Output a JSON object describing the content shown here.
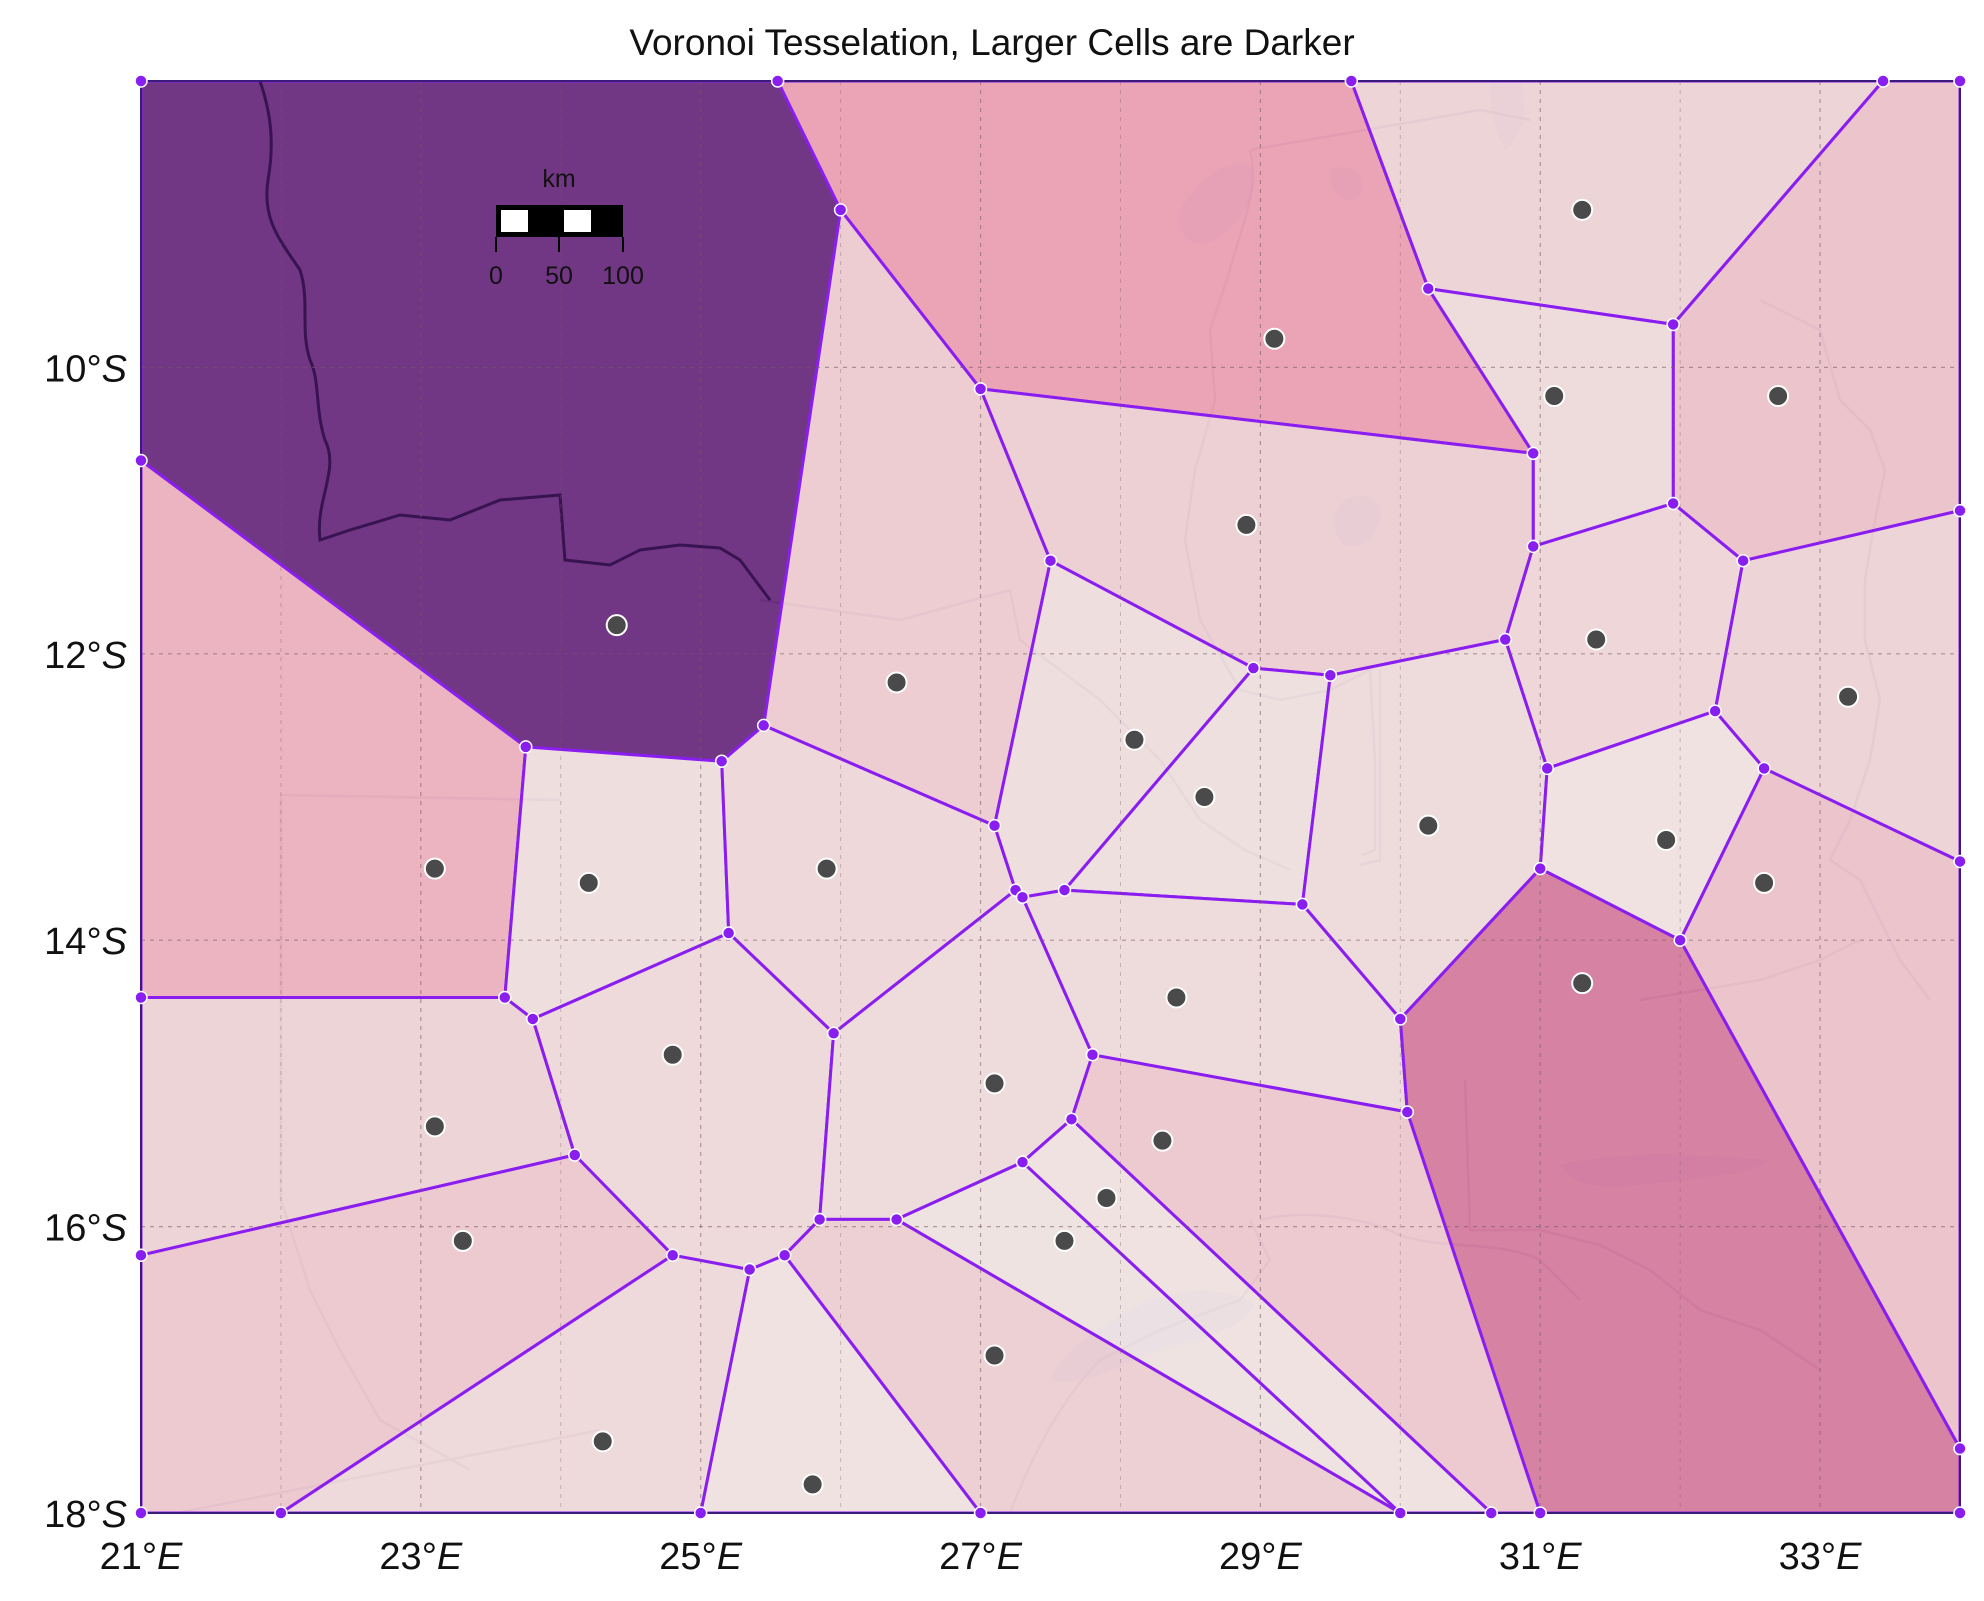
{
  "title": "Voronoi Tesselation, Larger Cells are Darker",
  "colors": {
    "edge": "#8a1ef0",
    "site_fill": "#4a4a4a",
    "site_stroke": "#ffffff",
    "largest_cell": "#5a1d70",
    "second_cell": "#d8559a",
    "land": "#efe2df",
    "water": "#c9c8e6"
  },
  "map": {
    "projection": "lat-lon grid",
    "lon_range": [
      21,
      34
    ],
    "lat_range": [
      -18,
      -8
    ],
    "grid_lines": true,
    "lon_ticks": [
      {
        "value": 21,
        "deg": "21°",
        "hem": "E"
      },
      {
        "value": 23,
        "deg": "23°",
        "hem": "E"
      },
      {
        "value": 25,
        "deg": "25°",
        "hem": "E"
      },
      {
        "value": 27,
        "deg": "27°",
        "hem": "E"
      },
      {
        "value": 29,
        "deg": "29°",
        "hem": "E"
      },
      {
        "value": 31,
        "deg": "31°",
        "hem": "E"
      },
      {
        "value": 33,
        "deg": "33°",
        "hem": "E"
      }
    ],
    "lat_ticks": [
      {
        "value": -10,
        "deg": "10°",
        "hem": "S"
      },
      {
        "value": -12,
        "deg": "12°",
        "hem": "S"
      },
      {
        "value": -14,
        "deg": "14°",
        "hem": "S"
      },
      {
        "value": -16,
        "deg": "16°",
        "hem": "S"
      },
      {
        "value": -18,
        "deg": "18°",
        "hem": "S"
      }
    ]
  },
  "scale_bar": {
    "unit": "km",
    "labels": [
      "0",
      "50",
      "100"
    ],
    "location": "top-left"
  },
  "cells": [
    {
      "shade": 1.0,
      "site": [
        24.4,
        -11.8
      ],
      "poly": [
        [
          21,
          -8
        ],
        [
          25.55,
          -8
        ],
        [
          26.0,
          -8.9
        ],
        [
          25.45,
          -12.5
        ],
        [
          25.15,
          -12.75
        ],
        [
          23.75,
          -12.65
        ],
        [
          21,
          -10.65
        ]
      ]
    },
    {
      "shade": 0.42,
      "site": [
        29.1,
        -9.8
      ],
      "poly": [
        [
          25.55,
          -8
        ],
        [
          29.65,
          -8
        ],
        [
          30.2,
          -9.45
        ],
        [
          30.95,
          -10.6
        ],
        [
          27.0,
          -10.15
        ],
        [
          26.0,
          -8.9
        ]
      ]
    },
    {
      "shade": 0.12,
      "site": [
        31.3,
        -8.9
      ],
      "poly": [
        [
          29.65,
          -8
        ],
        [
          33.45,
          -8
        ],
        [
          31.95,
          -9.7
        ],
        [
          30.2,
          -9.45
        ]
      ]
    },
    {
      "shade": 0.22,
      "site": [
        32.7,
        -10.2
      ],
      "poly": [
        [
          33.45,
          -8
        ],
        [
          34,
          -8
        ],
        [
          34,
          -11.0
        ],
        [
          32.45,
          -11.35
        ],
        [
          31.95,
          -10.95
        ],
        [
          31.95,
          -9.7
        ]
      ]
    },
    {
      "shade": 0.06,
      "site": [
        31.1,
        -10.2
      ],
      "poly": [
        [
          30.2,
          -9.45
        ],
        [
          31.95,
          -9.7
        ],
        [
          31.95,
          -10.95
        ],
        [
          30.95,
          -11.25
        ],
        [
          30.95,
          -10.6
        ]
      ]
    },
    {
      "shade": 0.16,
      "site": [
        26.4,
        -12.2
      ],
      "poly": [
        [
          26.0,
          -8.9
        ],
        [
          27.0,
          -10.15
        ],
        [
          27.5,
          -11.35
        ],
        [
          27.1,
          -13.2
        ],
        [
          25.45,
          -12.5
        ]
      ]
    },
    {
      "shade": 0.14,
      "site": [
        28.9,
        -11.1
      ],
      "poly": [
        [
          27.0,
          -10.15
        ],
        [
          30.95,
          -10.6
        ],
        [
          30.95,
          -11.25
        ],
        [
          30.75,
          -11.9
        ],
        [
          29.5,
          -12.15
        ],
        [
          28.95,
          -12.1
        ],
        [
          27.5,
          -11.35
        ]
      ]
    },
    {
      "shade": 0.1,
      "site": [
        31.4,
        -11.9
      ],
      "poly": [
        [
          30.95,
          -11.25
        ],
        [
          31.95,
          -10.95
        ],
        [
          32.45,
          -11.35
        ],
        [
          32.25,
          -12.4
        ],
        [
          31.05,
          -12.8
        ],
        [
          30.75,
          -11.9
        ]
      ]
    },
    {
      "shade": 0.12,
      "site": [
        33.2,
        -12.3
      ],
      "poly": [
        [
          32.45,
          -11.35
        ],
        [
          34,
          -11.0
        ],
        [
          34,
          -13.45
        ],
        [
          32.6,
          -12.8
        ],
        [
          32.25,
          -12.4
        ]
      ]
    },
    {
      "shade": 0.32,
      "site": [
        23.1,
        -13.5
      ],
      "poly": [
        [
          21,
          -10.65
        ],
        [
          23.75,
          -12.65
        ],
        [
          23.6,
          -14.4
        ],
        [
          21,
          -14.4
        ]
      ]
    },
    {
      "shade": 0.05,
      "site": [
        24.2,
        -13.6
      ],
      "poly": [
        [
          23.75,
          -12.65
        ],
        [
          25.15,
          -12.75
        ],
        [
          25.2,
          -13.95
        ],
        [
          23.8,
          -14.55
        ],
        [
          23.6,
          -14.4
        ]
      ]
    },
    {
      "shade": 0.09,
      "site": [
        25.9,
        -13.5
      ],
      "poly": [
        [
          25.15,
          -12.75
        ],
        [
          25.45,
          -12.5
        ],
        [
          27.1,
          -13.2
        ],
        [
          27.25,
          -13.65
        ],
        [
          25.95,
          -14.65
        ],
        [
          25.2,
          -13.95
        ]
      ]
    },
    {
      "shade": 0.05,
      "site": [
        28.1,
        -12.6
      ],
      "poly": [
        [
          27.5,
          -11.35
        ],
        [
          28.95,
          -12.1
        ],
        [
          27.6,
          -13.65
        ],
        [
          27.3,
          -13.7
        ],
        [
          27.25,
          -13.65
        ],
        [
          27.1,
          -13.2
        ]
      ]
    },
    {
      "shade": 0.04,
      "site": [
        28.6,
        -13.0
      ],
      "poly": [
        [
          28.95,
          -12.1
        ],
        [
          29.5,
          -12.15
        ],
        [
          29.3,
          -13.75
        ],
        [
          27.6,
          -13.65
        ]
      ]
    },
    {
      "shade": 0.06,
      "site": [
        30.2,
        -13.2
      ],
      "poly": [
        [
          29.5,
          -12.15
        ],
        [
          30.75,
          -11.9
        ],
        [
          31.05,
          -12.8
        ],
        [
          31.0,
          -13.5
        ],
        [
          30.0,
          -14.55
        ],
        [
          29.3,
          -13.75
        ]
      ]
    },
    {
      "shade": 0.03,
      "site": [
        31.9,
        -13.3
      ],
      "poly": [
        [
          31.05,
          -12.8
        ],
        [
          32.25,
          -12.4
        ],
        [
          32.6,
          -12.8
        ],
        [
          32.0,
          -14.0
        ],
        [
          31.0,
          -13.5
        ]
      ]
    },
    {
      "shade": 0.22,
      "site": [
        32.6,
        -13.6
      ],
      "poly": [
        [
          32.6,
          -12.8
        ],
        [
          34,
          -13.45
        ],
        [
          34,
          -17.55
        ],
        [
          32.0,
          -14.0
        ]
      ]
    },
    {
      "shade": 0.12,
      "site": [
        23.1,
        -15.3
      ],
      "poly": [
        [
          21,
          -14.4
        ],
        [
          23.6,
          -14.4
        ],
        [
          23.8,
          -14.55
        ],
        [
          24.1,
          -15.5
        ],
        [
          21,
          -16.2
        ]
      ]
    },
    {
      "shade": 0.08,
      "site": [
        24.8,
        -14.8
      ],
      "poly": [
        [
          23.8,
          -14.55
        ],
        [
          25.2,
          -13.95
        ],
        [
          25.95,
          -14.65
        ],
        [
          25.85,
          -15.95
        ],
        [
          25.6,
          -16.2
        ],
        [
          25.35,
          -16.3
        ],
        [
          24.8,
          -16.2
        ],
        [
          24.1,
          -15.5
        ]
      ]
    },
    {
      "shade": 0.06,
      "site": [
        27.1,
        -15.0
      ],
      "poly": [
        [
          25.95,
          -14.65
        ],
        [
          27.25,
          -13.65
        ],
        [
          27.3,
          -13.7
        ],
        [
          27.8,
          -14.8
        ],
        [
          27.65,
          -15.25
        ],
        [
          27.3,
          -15.55
        ],
        [
          26.4,
          -15.95
        ],
        [
          25.85,
          -15.95
        ]
      ]
    },
    {
      "shade": 0.07,
      "site": [
        28.4,
        -14.4
      ],
      "poly": [
        [
          27.3,
          -13.7
        ],
        [
          27.6,
          -13.65
        ],
        [
          29.3,
          -13.75
        ],
        [
          30.0,
          -14.55
        ],
        [
          30.05,
          -15.2
        ],
        [
          27.8,
          -14.8
        ]
      ]
    },
    {
      "shade": 0.62,
      "site": [
        31.3,
        -14.3
      ],
      "poly": [
        [
          31.0,
          -13.5
        ],
        [
          32.0,
          -14.0
        ],
        [
          34,
          -17.55
        ],
        [
          34,
          -18
        ],
        [
          31.0,
          -18
        ],
        [
          30.05,
          -15.2
        ],
        [
          30.0,
          -14.55
        ]
      ]
    },
    {
      "shade": 0.18,
      "site": [
        28.3,
        -15.4
      ],
      "poly": [
        [
          27.8,
          -14.8
        ],
        [
          30.05,
          -15.2
        ],
        [
          31.0,
          -18
        ],
        [
          30.65,
          -18
        ],
        [
          27.65,
          -15.25
        ]
      ]
    },
    {
      "shade": 0.03,
      "site": [
        27.9,
        -15.8
      ],
      "poly": [
        [
          27.65,
          -15.25
        ],
        [
          30.65,
          -18
        ],
        [
          30.0,
          -18
        ],
        [
          27.3,
          -15.55
        ]
      ]
    },
    {
      "shade": 0.02,
      "site": [
        27.6,
        -16.1
      ],
      "poly": [
        [
          27.3,
          -15.55
        ],
        [
          30.0,
          -18
        ],
        [
          26.4,
          -15.95
        ]
      ]
    },
    {
      "shade": 0.18,
      "site": [
        23.3,
        -16.1
      ],
      "poly": [
        [
          21,
          -16.2
        ],
        [
          24.1,
          -15.5
        ],
        [
          24.8,
          -16.2
        ],
        [
          22.0,
          -18
        ],
        [
          21,
          -18
        ]
      ]
    },
    {
      "shade": 0.08,
      "site": [
        24.3,
        -17.5
      ],
      "poly": [
        [
          22.0,
          -18
        ],
        [
          24.8,
          -16.2
        ],
        [
          25.35,
          -16.3
        ],
        [
          25.0,
          -18
        ]
      ]
    },
    {
      "shade": 0.03,
      "site": [
        25.8,
        -17.8
      ],
      "poly": [
        [
          25.35,
          -16.3
        ],
        [
          25.6,
          -16.2
        ],
        [
          27.0,
          -18
        ],
        [
          25.0,
          -18
        ]
      ]
    },
    {
      "shade": 0.14,
      "site": [
        27.1,
        -16.9
      ],
      "poly": [
        [
          25.6,
          -16.2
        ],
        [
          25.85,
          -15.95
        ],
        [
          26.4,
          -15.95
        ],
        [
          30.0,
          -18
        ],
        [
          27.0,
          -18
        ]
      ]
    }
  ]
}
